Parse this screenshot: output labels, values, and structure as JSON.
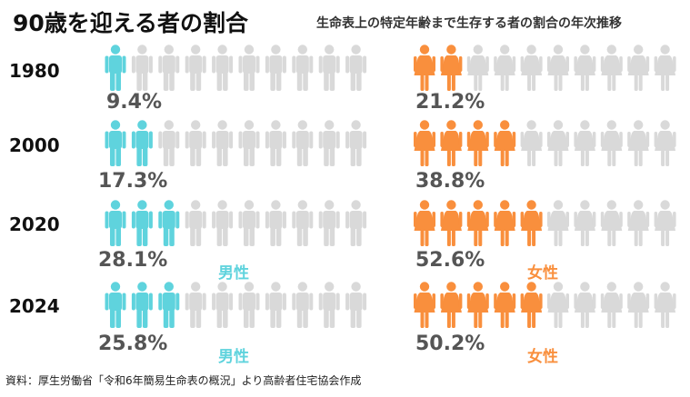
{
  "title": "90歳を迎える者の割合",
  "subtitle": "生命表上の特定年齢まで生存する者の割合の年次推移",
  "source": "資料：厚生労働省「令和6年簡易生命表の概況」より高齢者住宅協会作成",
  "colors": {
    "male": "#5fd3dd",
    "female": "#f98f3d",
    "inactive": "#d9d9d9"
  },
  "chart_data": {
    "type": "pictograph",
    "icons_per_row": 10,
    "categories": [
      "1980",
      "2000",
      "2020",
      "2024"
    ],
    "series": [
      {
        "name": "男性",
        "values": [
          9.4,
          17.3,
          28.1,
          25.8
        ],
        "labels": [
          "9.4%",
          "17.3%",
          "28.1%",
          "25.8%"
        ]
      },
      {
        "name": "女性",
        "values": [
          21.2,
          38.8,
          52.6,
          50.2
        ],
        "labels": [
          "21.2%",
          "38.8%",
          "52.6%",
          "50.2%"
        ]
      }
    ]
  }
}
